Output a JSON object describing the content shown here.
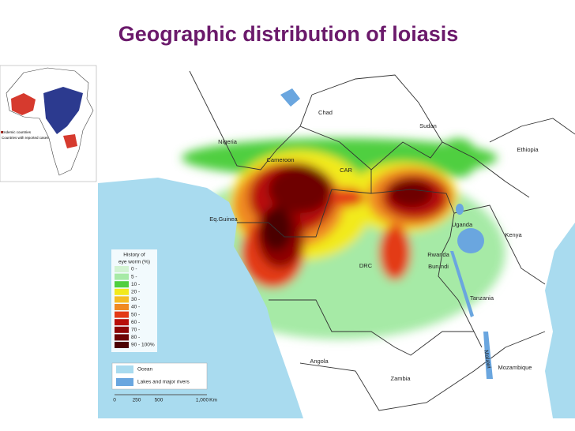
{
  "header": {
    "title": "Geographic distribution of loiasis"
  },
  "inset": {
    "legend": [
      "Endemic countries",
      "Countries with reported cases"
    ]
  },
  "countries": [
    "Chad",
    "Sudan",
    "Nigeria",
    "Ethiopia",
    "Cameroon",
    "CAR",
    "Eq.Guinea",
    "Uganda",
    "Kenya",
    "Rwanda",
    "Burundi",
    "DRC",
    "Tanzania",
    "Angola",
    "Malawi",
    "Zambia",
    "Mozambique"
  ],
  "prevalence_legend": {
    "title": [
      "History of",
      "eye worm (%)"
    ],
    "items": [
      {
        "label": "0 -",
        "color": "#d2f3d2"
      },
      {
        "label": "5 -",
        "color": "#a6eaa6"
      },
      {
        "label": "10 -",
        "color": "#4fcf3f"
      },
      {
        "label": "20 -",
        "color": "#f2ea1c"
      },
      {
        "label": "30 -",
        "color": "#f6bd24"
      },
      {
        "label": "40 -",
        "color": "#f08a22"
      },
      {
        "label": "50 -",
        "color": "#e33a16"
      },
      {
        "label": "60 -",
        "color": "#b80f0a"
      },
      {
        "label": "70 -",
        "color": "#8e0606"
      },
      {
        "label": "80 -",
        "color": "#6e0404"
      },
      {
        "label": "90 - 100%",
        "color": "#4c0202"
      }
    ]
  },
  "map_legend": [
    {
      "label": "Ocean",
      "color": "#a9dbef"
    },
    {
      "label": "Lakes and major rivers",
      "color": "#6aa6df"
    }
  ],
  "scale": [
    "0",
    "250",
    "500",
    "1,000",
    "Km"
  ]
}
